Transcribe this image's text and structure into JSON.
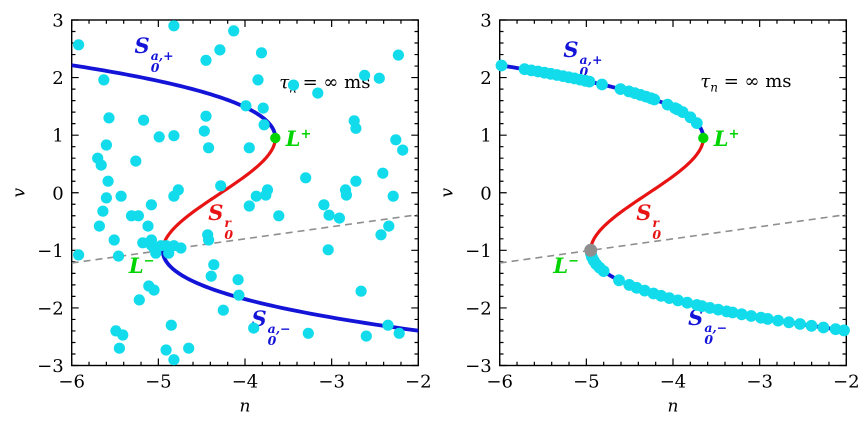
{
  "figure": {
    "background": "#ffffff",
    "colors": {
      "attracting_branch": "#1414d9",
      "repelling_branch": "#e81414",
      "dots": "#12dcec",
      "fold_plus": "#00d400",
      "fold_minus_marker": "#8f8f8f",
      "nullcline": "#8f8f8f",
      "text": "#000000"
    }
  },
  "panels": [
    {
      "labels": {
        "s0a_plus": {
          "base": "S",
          "sup": "a,+",
          "sub": "0",
          "n": -5.05,
          "v": 2.4,
          "color": "#1414d9"
        },
        "tau": {
          "base": "τ",
          "sub": "n",
          "rest": " = ∞ ms",
          "n": -3.08,
          "v": 1.88,
          "color": "#000000"
        },
        "l_plus": {
          "base": "L",
          "sup": "+",
          "n": -3.38,
          "v": 0.95,
          "color": "#00d400"
        },
        "s0r": {
          "base": "S",
          "sup": "r",
          "sub": "0",
          "n": -4.28,
          "v": -0.5,
          "color": "#e81414"
        },
        "l_minus": {
          "base": "L",
          "sup": "−",
          "n": -5.19,
          "v": -1.26,
          "color": "#00d400"
        },
        "s0a_minus": {
          "base": "S",
          "sup": "a,−",
          "sub": "0",
          "n": -3.7,
          "v": -2.34,
          "color": "#1414d9"
        }
      }
    },
    {
      "labels": {
        "s0a_plus": {
          "base": "S",
          "sup": "a,+",
          "sub": "0",
          "n": -5.04,
          "v": 2.33,
          "color": "#1414d9"
        },
        "tau": {
          "base": "τ",
          "sub": "n",
          "rest": " = ∞ ms",
          "n": -3.16,
          "v": 1.89,
          "color": "#000000"
        },
        "l_plus": {
          "base": "L",
          "sup": "+",
          "n": -3.38,
          "v": 0.95,
          "color": "#00d400"
        },
        "s0r": {
          "base": "S",
          "sup": "r",
          "sub": "0",
          "n": -4.28,
          "v": -0.5,
          "color": "#e81414"
        },
        "l_minus": {
          "base": "L",
          "sup": "−",
          "n": -5.23,
          "v": -1.26,
          "color": "#00d400"
        },
        "s0a_minus": {
          "base": "S",
          "sup": "a,−",
          "sub": "0",
          "n": -3.6,
          "v": -2.33,
          "color": "#1414d9"
        }
      }
    }
  ],
  "chart_data": [
    {
      "type": "scatter",
      "xlabel": "n",
      "ylabel": "v",
      "xlim": [
        -6,
        -2
      ],
      "ylim": [
        -3,
        3
      ],
      "xticks": [
        -6,
        -5,
        -4,
        -3,
        -2
      ],
      "xtick_labels": [
        "−6",
        "−5",
        "−4",
        "−3",
        "−2"
      ],
      "yticks": [
        -3,
        -2,
        -1,
        0,
        1,
        2,
        3
      ],
      "ytick_labels": [
        "−3",
        "−2",
        "−1",
        "0",
        "1",
        "2",
        "3"
      ],
      "minor_tick_step": 0.2,
      "critical_manifold_cubic_n_of_v": {
        "a": -0.3506,
        "b": -0.0263,
        "c": 0.9992,
        "d": -4.2749
      },
      "branches": [
        {
          "name": "S0_a_plus_attracting",
          "color": "#1414d9",
          "v_range": [
            0.95,
            2.215
          ],
          "width": 3.8
        },
        {
          "name": "S0_r_repelling",
          "color": "#e81414",
          "v_range": [
            -1.0,
            0.95
          ],
          "width": 3.2
        },
        {
          "name": "S0_a_minus_attracting",
          "color": "#1414d9",
          "v_range": [
            -2.401,
            -1.0
          ],
          "width": 3.8
        }
      ],
      "n_nullcline_dashed": {
        "x": [
          -6,
          -2
        ],
        "y": [
          -1.22,
          -0.38
        ],
        "color": "#8f8f8f"
      },
      "fold_points": [
        {
          "name": "L+",
          "n": -3.65,
          "v": 0.95,
          "color": "#00d400",
          "r": 5.2
        }
      ],
      "scatter": {
        "color": "#12dcec",
        "r": 5.6,
        "points": [
          [
            -5.92,
            2.57
          ],
          [
            -4.82,
            2.9
          ],
          [
            -4.13,
            2.81
          ],
          [
            -4.29,
            2.48
          ],
          [
            -4.45,
            2.3
          ],
          [
            -5.63,
            1.96
          ],
          [
            -5.57,
            1.3
          ],
          [
            -5.17,
            1.26
          ],
          [
            -4.99,
            0.97
          ],
          [
            -4.45,
            1.33
          ],
          [
            -4.47,
            1.07
          ],
          [
            -5.6,
            0.83
          ],
          [
            -5.7,
            0.6
          ],
          [
            -5.66,
            0.48
          ],
          [
            -5.26,
            0.55
          ],
          [
            -4.82,
            0.99
          ],
          [
            -4.42,
            0.78
          ],
          [
            -5.58,
            0.2
          ],
          [
            -4.77,
            0.05
          ],
          [
            -4.28,
            0.12
          ],
          [
            -3.81,
            2.43
          ],
          [
            -3.85,
            1.96
          ],
          [
            -3.44,
            1.87
          ],
          [
            -3.16,
            1.73
          ],
          [
            -2.62,
            2.04
          ],
          [
            -2.45,
            1.99
          ],
          [
            -2.23,
            2.39
          ],
          [
            -3.79,
            1.47
          ],
          [
            -3.78,
            1.18
          ],
          [
            -2.74,
            1.25
          ],
          [
            -2.72,
            1.12
          ],
          [
            -3.99,
            1.51
          ],
          [
            -3.95,
            0.78
          ],
          [
            -3.3,
            0.26
          ],
          [
            -2.72,
            0.2
          ],
          [
            -2.41,
            0.34
          ],
          [
            -2.84,
            0.05
          ],
          [
            -3.74,
            0.05
          ],
          [
            -2.26,
            0.92
          ],
          [
            -2.18,
            0.74
          ],
          [
            -5.6,
            -0.09
          ],
          [
            -5.43,
            -0.06
          ],
          [
            -5.08,
            -0.21
          ],
          [
            -4.82,
            -0.06
          ],
          [
            -5.64,
            -0.32
          ],
          [
            -5.31,
            -0.4
          ],
          [
            -5.23,
            -0.4
          ],
          [
            -5.68,
            -0.58
          ],
          [
            -5.12,
            -0.58
          ],
          [
            -5.51,
            -0.82
          ],
          [
            -5.92,
            -1.08
          ],
          [
            -5.46,
            -1.1
          ],
          [
            -5.18,
            -0.87
          ],
          [
            -5.08,
            -0.91
          ],
          [
            -5.05,
            -0.96
          ],
          [
            -5.03,
            -1.05
          ],
          [
            -4.97,
            -0.92
          ],
          [
            -4.91,
            -0.92
          ],
          [
            -4.88,
            -1.05
          ],
          [
            -4.82,
            -0.92
          ],
          [
            -5.08,
            -0.82
          ],
          [
            -4.74,
            -0.96
          ],
          [
            -4.42,
            -0.82
          ],
          [
            -4.43,
            -0.73
          ],
          [
            -4.36,
            -1.25
          ],
          [
            -4.39,
            -1.45
          ],
          [
            -5.11,
            -1.62
          ],
          [
            -5.05,
            -1.69
          ],
          [
            -5.22,
            -1.86
          ],
          [
            -4.25,
            -2.04
          ],
          [
            -4.08,
            -1.51
          ],
          [
            -4.07,
            -1.78
          ],
          [
            -5.49,
            -2.4
          ],
          [
            -5.41,
            -2.47
          ],
          [
            -5.45,
            -2.7
          ],
          [
            -4.85,
            -2.3
          ],
          [
            -4.91,
            -2.73
          ],
          [
            -4.82,
            -2.9
          ],
          [
            -4.65,
            -2.7
          ],
          [
            -3.95,
            -0.23
          ],
          [
            -3.87,
            -0.06
          ],
          [
            -3.76,
            -0.04
          ],
          [
            -3.61,
            -0.4
          ],
          [
            -3.09,
            -0.21
          ],
          [
            -3.03,
            -0.39
          ],
          [
            -2.91,
            -0.44
          ],
          [
            -2.83,
            -0.04
          ],
          [
            -2.29,
            -0.06
          ],
          [
            -2.34,
            -0.58
          ],
          [
            -2.43,
            -0.73
          ],
          [
            -3.04,
            -0.99
          ],
          [
            -2.66,
            -1.71
          ],
          [
            -3.9,
            -2.35
          ],
          [
            -3.27,
            -2.44
          ],
          [
            -2.6,
            -2.49
          ],
          [
            -2.35,
            -2.3
          ],
          [
            -2.22,
            -2.44
          ]
        ]
      }
    },
    {
      "type": "scatter",
      "xlabel": "n",
      "ylabel": "v",
      "xlim": [
        -6,
        -2
      ],
      "ylim": [
        -3,
        3
      ],
      "xticks": [
        -6,
        -5,
        -4,
        -3,
        -2
      ],
      "xtick_labels": [
        "−6",
        "−5",
        "−4",
        "−3",
        "−2"
      ],
      "yticks": [
        -3,
        -2,
        -1,
        0,
        1,
        2,
        3
      ],
      "ytick_labels": [
        "−3",
        "−2",
        "−1",
        "0",
        "1",
        "2",
        "3"
      ],
      "minor_tick_step": 0.2,
      "critical_manifold_cubic_n_of_v": {
        "a": -0.3506,
        "b": -0.0263,
        "c": 0.9992,
        "d": -4.2749
      },
      "branches": [
        {
          "name": "S0_a_plus_attracting",
          "color": "#1414d9",
          "v_range": [
            0.95,
            2.215
          ],
          "width": 3.8
        },
        {
          "name": "S0_r_repelling",
          "color": "#e81414",
          "v_range": [
            -1.0,
            0.95
          ],
          "width": 3.2
        },
        {
          "name": "S0_a_minus_attracting",
          "color": "#1414d9",
          "v_range": [
            -2.401,
            -1.0
          ],
          "width": 3.8
        }
      ],
      "n_nullcline_dashed": {
        "x": [
          -6,
          -2
        ],
        "y": [
          -1.22,
          -0.38
        ],
        "color": "#8f8f8f"
      },
      "fold_points": [
        {
          "name": "L-",
          "n": -4.95,
          "v": -1.0,
          "color": "#8f8f8f",
          "r": 6.5
        },
        {
          "name": "L+",
          "n": -3.65,
          "v": 0.95,
          "color": "#00d400",
          "r": 5.2
        }
      ],
      "dots_on_manifold": {
        "color": "#12dcec",
        "r": 5.9,
        "upper_v": [
          2.21,
          2.145,
          2.125,
          2.105,
          2.085,
          2.065,
          2.045,
          2.025,
          2.005,
          1.985,
          1.965,
          1.945,
          1.93,
          1.88,
          1.8,
          1.76,
          1.73,
          1.7,
          1.67,
          1.64,
          1.62,
          1.53,
          1.47,
          1.45,
          1.4,
          1.31,
          1.21
        ],
        "lower_v": [
          -1.06,
          -1.12,
          -1.18,
          -1.24,
          -1.3,
          -1.36,
          -1.52,
          -1.6,
          -1.65,
          -1.7,
          -1.75,
          -1.79,
          -1.83,
          -1.87,
          -1.91,
          -1.95,
          -1.97,
          -2.0,
          -2.03,
          -2.06,
          -2.08,
          -2.11,
          -2.14,
          -2.17,
          -2.19,
          -2.22,
          -2.25,
          -2.28,
          -2.31,
          -2.34,
          -2.37,
          -2.39
        ]
      }
    }
  ]
}
